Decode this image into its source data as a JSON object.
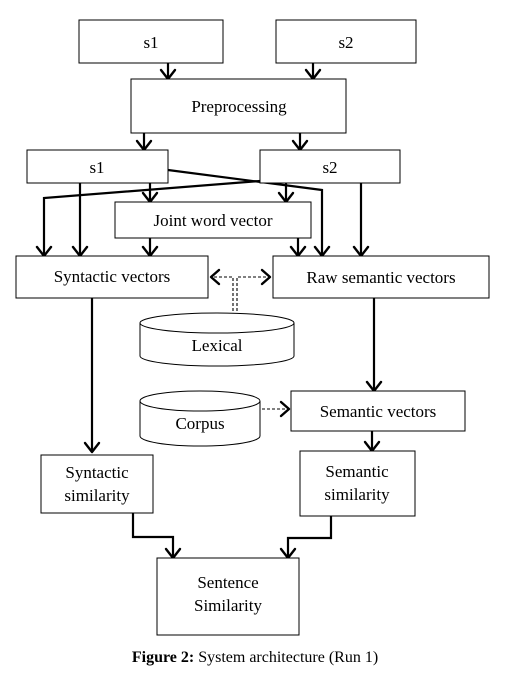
{
  "nodes": {
    "s1_top": "s1",
    "s2_top": "s2",
    "preprocessing": "Preprocessing",
    "s1_mid": "s1",
    "s2_mid": "s2",
    "joint_word_vector": "Joint word vector",
    "syntactic_vectors": "Syntactic vectors",
    "raw_semantic_vectors": "Raw semantic vectors",
    "lexical": "Lexical",
    "corpus": "Corpus",
    "semantic_vectors": "Semantic vectors",
    "syntactic_similarity": [
      "Syntactic",
      "similarity"
    ],
    "semantic_similarity": [
      "Semantic",
      "similarity"
    ],
    "sentence_similarity": [
      "Sentence",
      "Similarity"
    ]
  },
  "caption": {
    "label": "Figure 2:",
    "text": "System architecture (Run 1)"
  }
}
